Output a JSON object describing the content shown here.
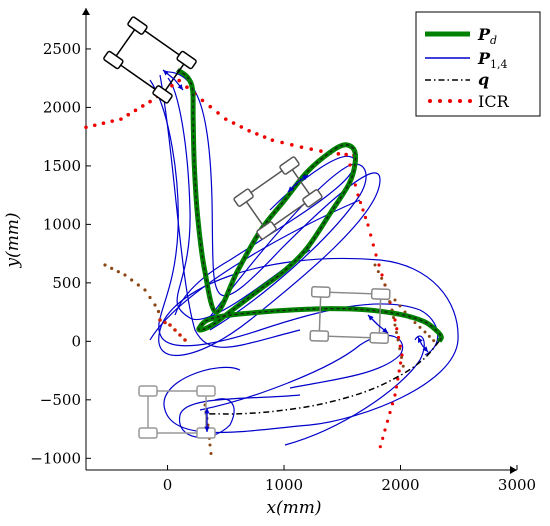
{
  "chart_data": {
    "type": "line",
    "xlabel": "x(mm)",
    "ylabel": "y(mm)",
    "xlim": [
      -700,
      3000
    ],
    "ylim": [
      -1100,
      2850
    ],
    "xticks": [
      0,
      1000,
      2000,
      3000
    ],
    "yticks": [
      -1000,
      -500,
      0,
      500,
      1000,
      1500,
      2000,
      2500
    ],
    "xtick_labels": [
      "0",
      "1000",
      "2000",
      "3000"
    ],
    "ytick_labels": [
      "−1000",
      "−500",
      "0",
      "500",
      "1000",
      "1500",
      "2000",
      "2500"
    ],
    "grid": false,
    "legend_position": "top-right",
    "series": [
      {
        "name": "P_d",
        "legend_label": "P",
        "legend_sub": "d",
        "color": "#008000",
        "style": "thick-solid",
        "x": [
          85,
          170,
          215,
          220,
          230,
          260,
          320,
          420,
          600,
          800,
          1000,
          1200,
          1400,
          1520,
          1600,
          1610,
          1560,
          1400,
          1200,
          1000,
          800,
          600,
          400,
          300,
          270,
          340,
          500,
          800,
          1100,
          1400,
          1700,
          2000,
          2200,
          2300,
          2350,
          2330
        ],
        "y": [
          2320,
          2260,
          2150,
          1900,
          1500,
          1050,
          600,
          250,
          600,
          950,
          1200,
          1450,
          1620,
          1680,
          1640,
          1520,
          1350,
          1100,
          800,
          600,
          450,
          300,
          150,
          100,
          110,
          180,
          220,
          250,
          270,
          280,
          270,
          230,
          170,
          100,
          40,
          0
        ]
      },
      {
        "name": "P_{1,4}",
        "legend_label": "P",
        "legend_sub": "1,4",
        "color": "#0000cc",
        "style": "solid"
      },
      {
        "name": "q",
        "legend_label": "q",
        "legend_sub": "",
        "color": "#000000",
        "style": "dash-dot",
        "x": [
          2330,
          2200,
          2000,
          1700,
          1300,
          900,
          600,
          450,
          300
        ],
        "y": [
          0,
          -150,
          -290,
          -430,
          -540,
          -600,
          -620,
          -620,
          -620
        ]
      },
      {
        "name": "ICR",
        "legend_label": "ICR",
        "legend_sub": "",
        "color": "#ee0000",
        "style": "dotted",
        "x": [
          -700,
          -400,
          -150,
          100,
          300,
          500,
          700,
          900,
          1150,
          1400,
          1600,
          1650
        ],
        "y": [
          1830,
          1900,
          2050,
          2230,
          2060,
          1900,
          1800,
          1720,
          1660,
          1610,
          1590,
          1600
        ]
      }
    ]
  }
}
